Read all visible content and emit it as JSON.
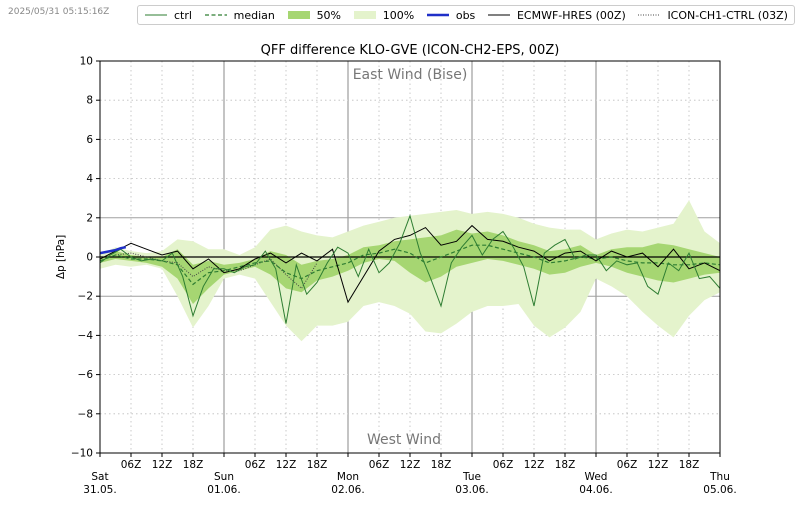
{
  "timestamp": "2025/05/31 05:15:16Z",
  "legend": [
    {
      "label": "ctrl",
      "style": "ctrl"
    },
    {
      "label": "median",
      "style": "median"
    },
    {
      "label": "50%",
      "style": "p50"
    },
    {
      "label": "100%",
      "style": "p100"
    },
    {
      "label": "obs",
      "style": "obs"
    },
    {
      "label": "ECMWF-HRES (00Z)",
      "style": "ecmwf"
    },
    {
      "label": "ICON-CH1-CTRL (03Z)",
      "style": "ch1"
    }
  ],
  "colors": {
    "ctrl": "#2e7d32",
    "median": "#2e7d32",
    "band50": "#a6d672",
    "band100": "#e4f3cc",
    "obs": "#1f2fc8",
    "ecmwf": "#000000",
    "ch1": "#444444"
  },
  "chart_data": {
    "type": "line",
    "title": "QFF difference KLO-GVE (ICON-CH2-EPS, 00Z)",
    "ylabel": "Δp [hPa]",
    "ylim": [
      -10,
      10
    ],
    "xlim_hours": [
      0,
      120
    ],
    "yticks": [
      -10,
      -8,
      -6,
      -4,
      -2,
      0,
      2,
      4,
      6,
      8,
      10
    ],
    "annotations": {
      "top": "East Wind (Bise)",
      "bottom": "West Wind"
    },
    "day_ticks": [
      {
        "h": 0,
        "day": "Sat",
        "date": "31.05."
      },
      {
        "h": 24,
        "day": "Sun",
        "date": "01.06."
      },
      {
        "h": 48,
        "day": "Mon",
        "date": "02.06."
      },
      {
        "h": 72,
        "day": "Tue",
        "date": "03.06."
      },
      {
        "h": 96,
        "day": "Wed",
        "date": "04.06."
      },
      {
        "h": 120,
        "day": "Thu",
        "date": "05.06."
      }
    ],
    "hour_ticks": [
      "06Z",
      "12Z",
      "18Z"
    ],
    "series": [
      {
        "name": "100%",
        "kind": "band",
        "x": [
          0,
          3,
          6,
          9,
          12,
          15,
          18,
          21,
          24,
          27,
          30,
          33,
          36,
          39,
          42,
          45,
          48,
          51,
          54,
          57,
          60,
          63,
          66,
          69,
          72,
          75,
          78,
          81,
          84,
          87,
          90,
          93,
          96,
          99,
          102,
          105,
          108,
          111,
          114,
          117,
          120
        ],
        "upper": [
          0.1,
          0.5,
          0.3,
          0.2,
          0.3,
          0.9,
          0.8,
          0.4,
          0.4,
          0.1,
          0.5,
          1.4,
          1.6,
          1.3,
          1.1,
          1.0,
          1.3,
          1.6,
          1.8,
          2.0,
          2.1,
          2.2,
          2.3,
          2.4,
          2.2,
          2.3,
          2.2,
          2.0,
          1.7,
          1.5,
          1.4,
          1.4,
          0.9,
          1.2,
          1.4,
          1.3,
          1.5,
          1.7,
          2.9,
          1.3,
          0.7
        ],
        "lower": [
          -0.6,
          -0.4,
          -0.5,
          -0.4,
          -0.6,
          -2.0,
          -3.6,
          -2.5,
          -1.1,
          -0.9,
          -1.1,
          -2.3,
          -3.5,
          -4.3,
          -3.5,
          -3.5,
          -3.3,
          -2.5,
          -2.3,
          -2.5,
          -2.9,
          -3.8,
          -3.9,
          -3.4,
          -2.8,
          -2.5,
          -2.5,
          -2.4,
          -3.5,
          -4.1,
          -3.6,
          -2.8,
          -1.1,
          -1.5,
          -2.0,
          -2.8,
          -3.5,
          -4.1,
          -3.0,
          -2.2,
          -1.8
        ]
      },
      {
        "name": "50%",
        "kind": "band",
        "x": [
          0,
          3,
          6,
          9,
          12,
          15,
          18,
          21,
          24,
          27,
          30,
          33,
          36,
          39,
          42,
          45,
          48,
          51,
          54,
          57,
          60,
          63,
          66,
          69,
          72,
          75,
          78,
          81,
          84,
          87,
          90,
          93,
          96,
          99,
          102,
          105,
          108,
          111,
          114,
          117,
          120
        ],
        "upper": [
          -0.1,
          0.3,
          0.1,
          0.0,
          0.0,
          0.4,
          -0.4,
          -0.2,
          -0.4,
          -0.3,
          -0.1,
          0.3,
          0.1,
          -0.4,
          -0.2,
          -0.1,
          0.1,
          0.5,
          0.6,
          0.8,
          0.9,
          1.0,
          1.1,
          1.4,
          1.2,
          1.3,
          1.1,
          0.8,
          0.6,
          0.3,
          0.4,
          0.6,
          0.1,
          0.4,
          0.5,
          0.5,
          0.7,
          0.6,
          0.4,
          0.2,
          0.0
        ],
        "lower": [
          -0.3,
          -0.1,
          -0.2,
          -0.3,
          -0.5,
          -1.1,
          -2.4,
          -1.6,
          -0.9,
          -0.7,
          -0.5,
          -0.9,
          -1.6,
          -1.8,
          -1.2,
          -1.0,
          -0.7,
          -0.3,
          -0.1,
          -0.2,
          -0.8,
          -1.3,
          -1.0,
          -0.5,
          -0.3,
          -0.1,
          -0.2,
          -0.4,
          -0.6,
          -0.9,
          -0.8,
          -0.5,
          -0.3,
          -0.5,
          -0.8,
          -1.0,
          -1.2,
          -1.3,
          -1.1,
          -0.9,
          -0.8
        ]
      },
      {
        "name": "median",
        "kind": "line",
        "x": [
          0,
          3,
          6,
          9,
          12,
          15,
          18,
          21,
          24,
          27,
          30,
          33,
          36,
          39,
          42,
          45,
          48,
          51,
          54,
          57,
          60,
          63,
          66,
          69,
          72,
          75,
          78,
          81,
          84,
          87,
          90,
          93,
          96,
          99,
          102,
          105,
          108,
          111,
          114,
          117,
          120
        ],
        "y": [
          -0.2,
          0.1,
          -0.1,
          -0.1,
          -0.2,
          -0.4,
          -1.4,
          -0.8,
          -0.7,
          -0.5,
          -0.3,
          -0.2,
          -0.8,
          -1.1,
          -0.7,
          -0.5,
          -0.3,
          0.1,
          0.2,
          0.4,
          0.2,
          -0.3,
          0.0,
          0.3,
          0.6,
          0.6,
          0.4,
          0.2,
          0.0,
          -0.3,
          -0.2,
          0.0,
          -0.1,
          0.0,
          -0.2,
          -0.3,
          -0.3,
          -0.4,
          -0.4,
          -0.3,
          -0.4
        ]
      },
      {
        "name": "ctrl",
        "kind": "line",
        "x": [
          0,
          2,
          4,
          6,
          8,
          10,
          12,
          14,
          16,
          18,
          20,
          22,
          24,
          26,
          28,
          30,
          32,
          34,
          36,
          38,
          40,
          42,
          44,
          46,
          48,
          50,
          52,
          54,
          56,
          58,
          60,
          62,
          64,
          66,
          68,
          70,
          72,
          74,
          76,
          78,
          80,
          82,
          84,
          86,
          88,
          90,
          92,
          94,
          96,
          98,
          100,
          102,
          104,
          106,
          108,
          110,
          112,
          114,
          116,
          118,
          120
        ],
        "y": [
          -0.3,
          0.1,
          0.4,
          0.0,
          -0.2,
          -0.1,
          -0.2,
          0.2,
          -1.0,
          -3.0,
          -1.5,
          -0.6,
          -0.6,
          -0.8,
          -0.5,
          -0.4,
          0.3,
          -0.6,
          -3.4,
          -0.4,
          -1.9,
          -1.3,
          -0.3,
          0.5,
          0.2,
          -1.0,
          0.4,
          -0.8,
          -0.3,
          0.7,
          2.1,
          0.2,
          -1.1,
          -2.5,
          -0.3,
          0.5,
          1.1,
          0.1,
          0.9,
          1.3,
          0.5,
          -0.5,
          -2.5,
          0.2,
          0.6,
          0.9,
          -0.1,
          0.1,
          0.1,
          -0.7,
          -0.2,
          -0.4,
          -0.3,
          -1.5,
          -1.9,
          -0.3,
          -0.7,
          0.2,
          -1.1,
          -1.0,
          -1.6
        ]
      },
      {
        "name": "obs",
        "kind": "line",
        "x": [
          0,
          1,
          2,
          3,
          4,
          5
        ],
        "y": [
          0.2,
          0.25,
          0.3,
          0.35,
          0.45,
          0.5
        ]
      },
      {
        "name": "ECMWF-HRES (00Z)",
        "kind": "line",
        "x": [
          0,
          3,
          6,
          9,
          12,
          15,
          18,
          21,
          24,
          27,
          30,
          33,
          36,
          39,
          42,
          45,
          48,
          51,
          54,
          57,
          60,
          63,
          66,
          69,
          72,
          75,
          78,
          81,
          84,
          87,
          90,
          93,
          96,
          99,
          102,
          105,
          108,
          111,
          114,
          117,
          120
        ],
        "y": [
          -0.1,
          0.3,
          0.7,
          0.4,
          0.1,
          0.3,
          -0.6,
          -0.1,
          -0.8,
          -0.6,
          -0.1,
          0.2,
          -0.3,
          0.2,
          -0.2,
          0.4,
          -2.3,
          -1.0,
          0.3,
          0.9,
          1.1,
          1.5,
          0.6,
          0.8,
          1.6,
          0.9,
          0.8,
          0.5,
          0.3,
          -0.2,
          0.2,
          0.3,
          -0.2,
          0.3,
          0.0,
          0.2,
          -0.5,
          0.4,
          -0.6,
          -0.3,
          -0.7
        ]
      },
      {
        "name": "ICON-CH1-CTRL (03Z)",
        "kind": "line",
        "x": [
          3,
          6,
          9,
          12,
          15,
          18,
          21,
          24,
          27,
          30,
          33,
          36,
          39,
          42
        ],
        "y": [
          0.1,
          0.2,
          0.0,
          -0.2,
          -0.3,
          -1.0,
          -0.5,
          -0.7,
          -0.7,
          -0.4,
          -0.1,
          -0.9,
          -1.6,
          -0.3
        ]
      }
    ]
  }
}
